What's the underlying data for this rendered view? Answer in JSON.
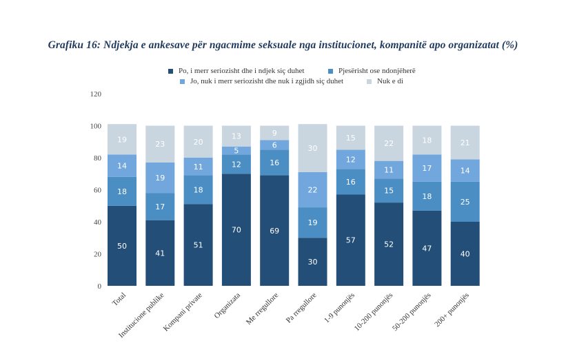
{
  "chart_data": {
    "type": "bar",
    "stacked": true,
    "title": "Grafiku 16: Ndjekja e ankesave për ngacmime seksuale nga institucionet, kompanitë apo organizatat (%)",
    "xlabel": "",
    "ylabel": "",
    "ylim": [
      0,
      120
    ],
    "yticks": [
      0,
      20,
      40,
      60,
      80,
      100,
      120
    ],
    "grid": false,
    "legend_position": "top",
    "categories": [
      "Total",
      "Institucione publike",
      "Kompani private",
      "Organizata",
      "Me rregullore",
      "Pa rregullore",
      "1-9 punonjës",
      "10-200 punonjës",
      "50-200 punonjës",
      "200+ punonjës"
    ],
    "series": [
      {
        "name": "Po, i merr seriozisht dhe i ndjek siç duhet",
        "color": "#234e78",
        "label_color": "#ffffff",
        "values": [
          50,
          41,
          51,
          70,
          69,
          30,
          57,
          52,
          47,
          40
        ]
      },
      {
        "name": "Pjesërisht ose ndonjëherë",
        "color": "#4a8ec4",
        "label_color": "#ffffff",
        "values": [
          18,
          17,
          18,
          12,
          16,
          19,
          16,
          15,
          18,
          25
        ]
      },
      {
        "name": "Jo, nuk i merr seriozisht dhe nuk i zgjidh siç duhet",
        "color": "#72a7dd",
        "label_color": "#ffffff",
        "values": [
          14,
          19,
          11,
          5,
          6,
          22,
          12,
          11,
          17,
          14
        ]
      },
      {
        "name": "Nuk e di",
        "color": "#c9d6e0",
        "label_color": "#ffffff",
        "values": [
          19,
          23,
          20,
          13,
          9,
          30,
          15,
          22,
          18,
          21
        ]
      }
    ]
  }
}
